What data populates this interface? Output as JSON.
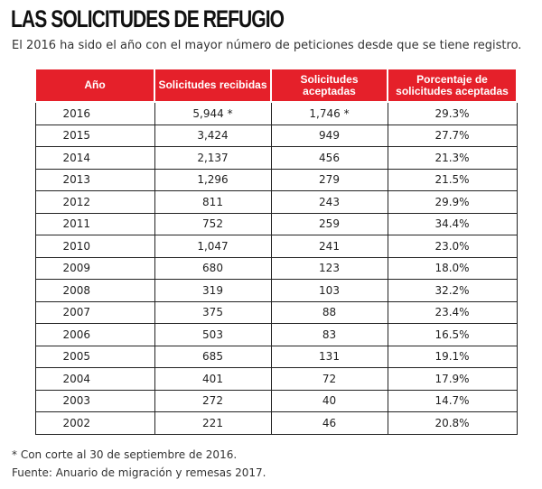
{
  "title": "LAS SOLICITUDES DE REFUGIO",
  "subtitle": "El 2016 ha sido el año con el mayor número de peticiones desde que se tiene registro.",
  "colors": {
    "header_background": "#e5202a",
    "header_text": "#ffffff",
    "border": "#222222"
  },
  "chart_data": {
    "type": "table",
    "columns": [
      "Año",
      "Solicitudes recibidas",
      "Solicitudes aceptadas",
      "Porcentaje de solicitudes aceptadas"
    ],
    "rows": [
      [
        "2016",
        "5,944 *",
        "1,746 *",
        "29.3%"
      ],
      [
        "2015",
        "3,424",
        "949",
        "27.7%"
      ],
      [
        "2014",
        "2,137",
        "456",
        "21.3%"
      ],
      [
        "2013",
        "1,296",
        "279",
        "21.5%"
      ],
      [
        "2012",
        "811",
        "243",
        "29.9%"
      ],
      [
        "2011",
        "752",
        "259",
        "34.4%"
      ],
      [
        "2010",
        "1,047",
        "241",
        "23.0%"
      ],
      [
        "2009",
        "680",
        "123",
        "18.0%"
      ],
      [
        "2008",
        "319",
        "103",
        "32.2%"
      ],
      [
        "2007",
        "375",
        "88",
        "23.4%"
      ],
      [
        "2006",
        "503",
        "83",
        "16.5%"
      ],
      [
        "2005",
        "685",
        "131",
        "19.1%"
      ],
      [
        "2004",
        "401",
        "72",
        "17.9%"
      ],
      [
        "2003",
        "272",
        "40",
        "14.7%"
      ],
      [
        "2002",
        "221",
        "46",
        "20.8%"
      ]
    ]
  },
  "footnote": "* Con corte al 30 de septiembre de 2016.",
  "source": "Fuente: Anuario de migración y remesas 2017."
}
